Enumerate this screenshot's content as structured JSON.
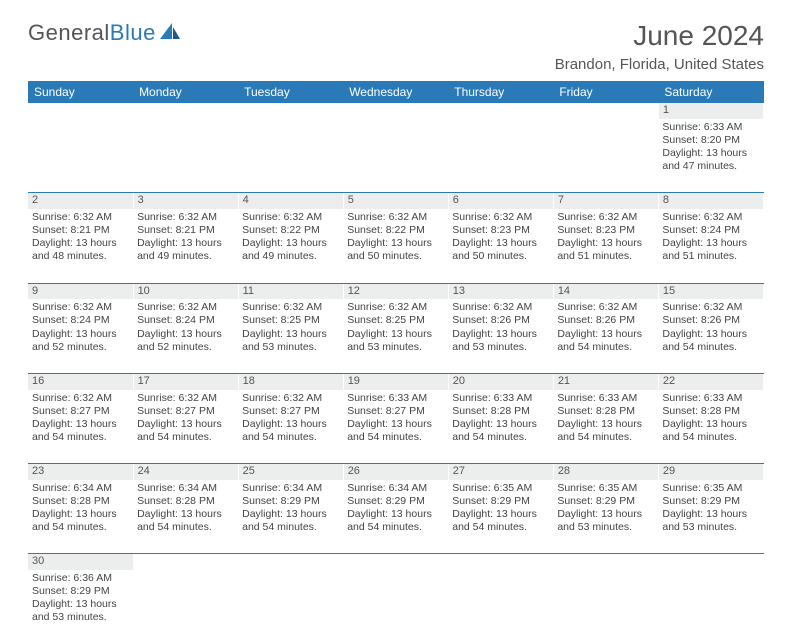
{
  "brand": {
    "part1": "General",
    "part2": "Blue",
    "sail_color": "#2a7ab8"
  },
  "title": {
    "month_year": "June 2024",
    "location": "Brandon, Florida, United States"
  },
  "weekday_headers": [
    "Sunday",
    "Monday",
    "Tuesday",
    "Wednesday",
    "Thursday",
    "Friday",
    "Saturday"
  ],
  "colors": {
    "header_bg": "#2a7ab8",
    "header_text": "#ffffff",
    "daynum_bg": "#eceded",
    "cell_divider": "#2a7ab8",
    "body_text": "#444444"
  },
  "first_weekday_index": 6,
  "days": [
    {
      "n": 1,
      "sunrise": "6:33 AM",
      "sunset": "8:20 PM",
      "daylight": "13 hours and 47 minutes."
    },
    {
      "n": 2,
      "sunrise": "6:32 AM",
      "sunset": "8:21 PM",
      "daylight": "13 hours and 48 minutes."
    },
    {
      "n": 3,
      "sunrise": "6:32 AM",
      "sunset": "8:21 PM",
      "daylight": "13 hours and 49 minutes."
    },
    {
      "n": 4,
      "sunrise": "6:32 AM",
      "sunset": "8:22 PM",
      "daylight": "13 hours and 49 minutes."
    },
    {
      "n": 5,
      "sunrise": "6:32 AM",
      "sunset": "8:22 PM",
      "daylight": "13 hours and 50 minutes."
    },
    {
      "n": 6,
      "sunrise": "6:32 AM",
      "sunset": "8:23 PM",
      "daylight": "13 hours and 50 minutes."
    },
    {
      "n": 7,
      "sunrise": "6:32 AM",
      "sunset": "8:23 PM",
      "daylight": "13 hours and 51 minutes."
    },
    {
      "n": 8,
      "sunrise": "6:32 AM",
      "sunset": "8:24 PM",
      "daylight": "13 hours and 51 minutes."
    },
    {
      "n": 9,
      "sunrise": "6:32 AM",
      "sunset": "8:24 PM",
      "daylight": "13 hours and 52 minutes."
    },
    {
      "n": 10,
      "sunrise": "6:32 AM",
      "sunset": "8:24 PM",
      "daylight": "13 hours and 52 minutes."
    },
    {
      "n": 11,
      "sunrise": "6:32 AM",
      "sunset": "8:25 PM",
      "daylight": "13 hours and 53 minutes."
    },
    {
      "n": 12,
      "sunrise": "6:32 AM",
      "sunset": "8:25 PM",
      "daylight": "13 hours and 53 minutes."
    },
    {
      "n": 13,
      "sunrise": "6:32 AM",
      "sunset": "8:26 PM",
      "daylight": "13 hours and 53 minutes."
    },
    {
      "n": 14,
      "sunrise": "6:32 AM",
      "sunset": "8:26 PM",
      "daylight": "13 hours and 54 minutes."
    },
    {
      "n": 15,
      "sunrise": "6:32 AM",
      "sunset": "8:26 PM",
      "daylight": "13 hours and 54 minutes."
    },
    {
      "n": 16,
      "sunrise": "6:32 AM",
      "sunset": "8:27 PM",
      "daylight": "13 hours and 54 minutes."
    },
    {
      "n": 17,
      "sunrise": "6:32 AM",
      "sunset": "8:27 PM",
      "daylight": "13 hours and 54 minutes."
    },
    {
      "n": 18,
      "sunrise": "6:32 AM",
      "sunset": "8:27 PM",
      "daylight": "13 hours and 54 minutes."
    },
    {
      "n": 19,
      "sunrise": "6:33 AM",
      "sunset": "8:27 PM",
      "daylight": "13 hours and 54 minutes."
    },
    {
      "n": 20,
      "sunrise": "6:33 AM",
      "sunset": "8:28 PM",
      "daylight": "13 hours and 54 minutes."
    },
    {
      "n": 21,
      "sunrise": "6:33 AM",
      "sunset": "8:28 PM",
      "daylight": "13 hours and 54 minutes."
    },
    {
      "n": 22,
      "sunrise": "6:33 AM",
      "sunset": "8:28 PM",
      "daylight": "13 hours and 54 minutes."
    },
    {
      "n": 23,
      "sunrise": "6:34 AM",
      "sunset": "8:28 PM",
      "daylight": "13 hours and 54 minutes."
    },
    {
      "n": 24,
      "sunrise": "6:34 AM",
      "sunset": "8:28 PM",
      "daylight": "13 hours and 54 minutes."
    },
    {
      "n": 25,
      "sunrise": "6:34 AM",
      "sunset": "8:29 PM",
      "daylight": "13 hours and 54 minutes."
    },
    {
      "n": 26,
      "sunrise": "6:34 AM",
      "sunset": "8:29 PM",
      "daylight": "13 hours and 54 minutes."
    },
    {
      "n": 27,
      "sunrise": "6:35 AM",
      "sunset": "8:29 PM",
      "daylight": "13 hours and 54 minutes."
    },
    {
      "n": 28,
      "sunrise": "6:35 AM",
      "sunset": "8:29 PM",
      "daylight": "13 hours and 53 minutes."
    },
    {
      "n": 29,
      "sunrise": "6:35 AM",
      "sunset": "8:29 PM",
      "daylight": "13 hours and 53 minutes."
    },
    {
      "n": 30,
      "sunrise": "6:36 AM",
      "sunset": "8:29 PM",
      "daylight": "13 hours and 53 minutes."
    }
  ],
  "labels": {
    "sunrise_prefix": "Sunrise: ",
    "sunset_prefix": "Sunset: ",
    "daylight_prefix": "Daylight: "
  }
}
